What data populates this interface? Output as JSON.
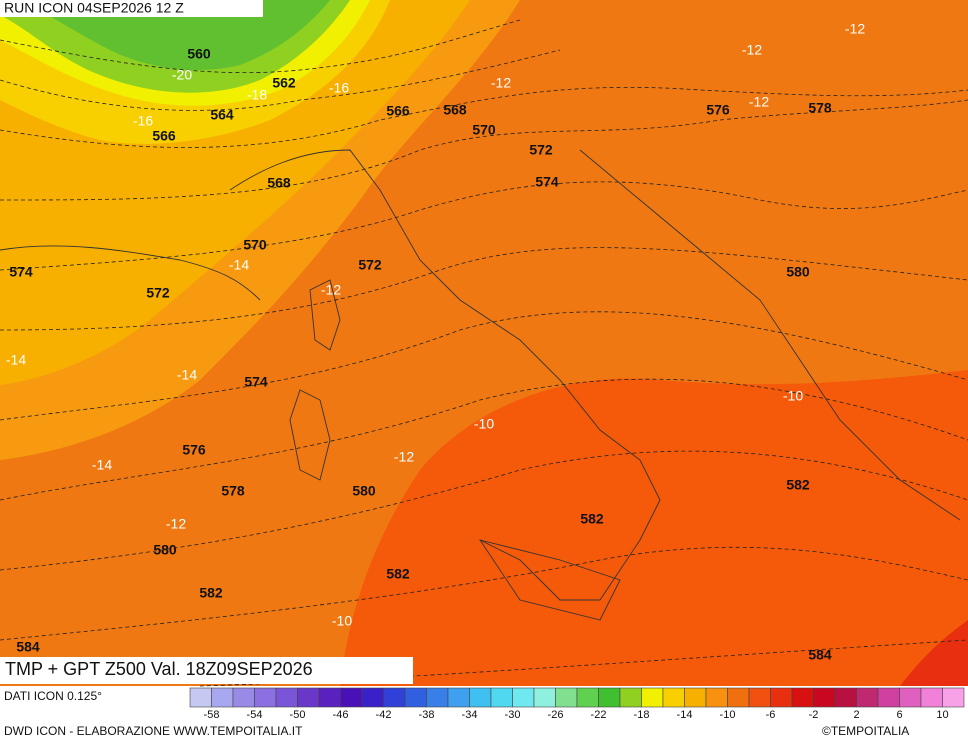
{
  "header": {
    "run": "RUN ICON 04SEP2026 12 Z"
  },
  "map": {
    "title": "TMP + GPT Z500 Val. 18Z09SEP2026",
    "contour_labels": [
      "560",
      "562",
      "564",
      "566",
      "566",
      "568",
      "570",
      "572",
      "574",
      "568",
      "570",
      "572",
      "574",
      "572",
      "574",
      "576",
      "578",
      "580",
      "580",
      "582",
      "582",
      "582",
      "582",
      "576",
      "578",
      "580",
      "584",
      "584"
    ],
    "temperature_labels": [
      "-20",
      "-18",
      "-16",
      "-16",
      "-12",
      "-12",
      "-12",
      "-12",
      "-14",
      "-12",
      "-14",
      "-14",
      "-14",
      "-12",
      "-12",
      "-10",
      "-10",
      "-10"
    ]
  },
  "colorbar": {
    "colors": [
      "#c5c8f0",
      "#a8a8f0",
      "#9a8ae8",
      "#8a70e0",
      "#7a55d8",
      "#6a38c8",
      "#5a20c0",
      "#4a10b8",
      "#3a20c8",
      "#3040d8",
      "#3060e0",
      "#3880e8",
      "#40a0f0",
      "#40c0f0",
      "#50d8f0",
      "#70e8f0",
      "#90f0e0",
      "#80e090",
      "#60d050",
      "#40c030",
      "#90d020",
      "#f0f000",
      "#f8d000",
      "#f8b000",
      "#f89010",
      "#f07010",
      "#f05010",
      "#e83010",
      "#d81010",
      "#c80820",
      "#b81040",
      "#c02870",
      "#d040a0",
      "#e060c0",
      "#f080d8",
      "#f8a0e8"
    ],
    "ticks": [
      -58,
      -54,
      -50,
      -46,
      -42,
      -38,
      -34,
      -30,
      -26,
      -22,
      -18,
      -14,
      -10,
      -6,
      -2,
      2,
      6,
      10
    ]
  },
  "footer": {
    "source": "DATI ICON 0.125°",
    "credit": "DWD ICON - ELABORAZIONE WWW.TEMPOITALIA.IT",
    "brand": "©TEMPOITALIA"
  }
}
